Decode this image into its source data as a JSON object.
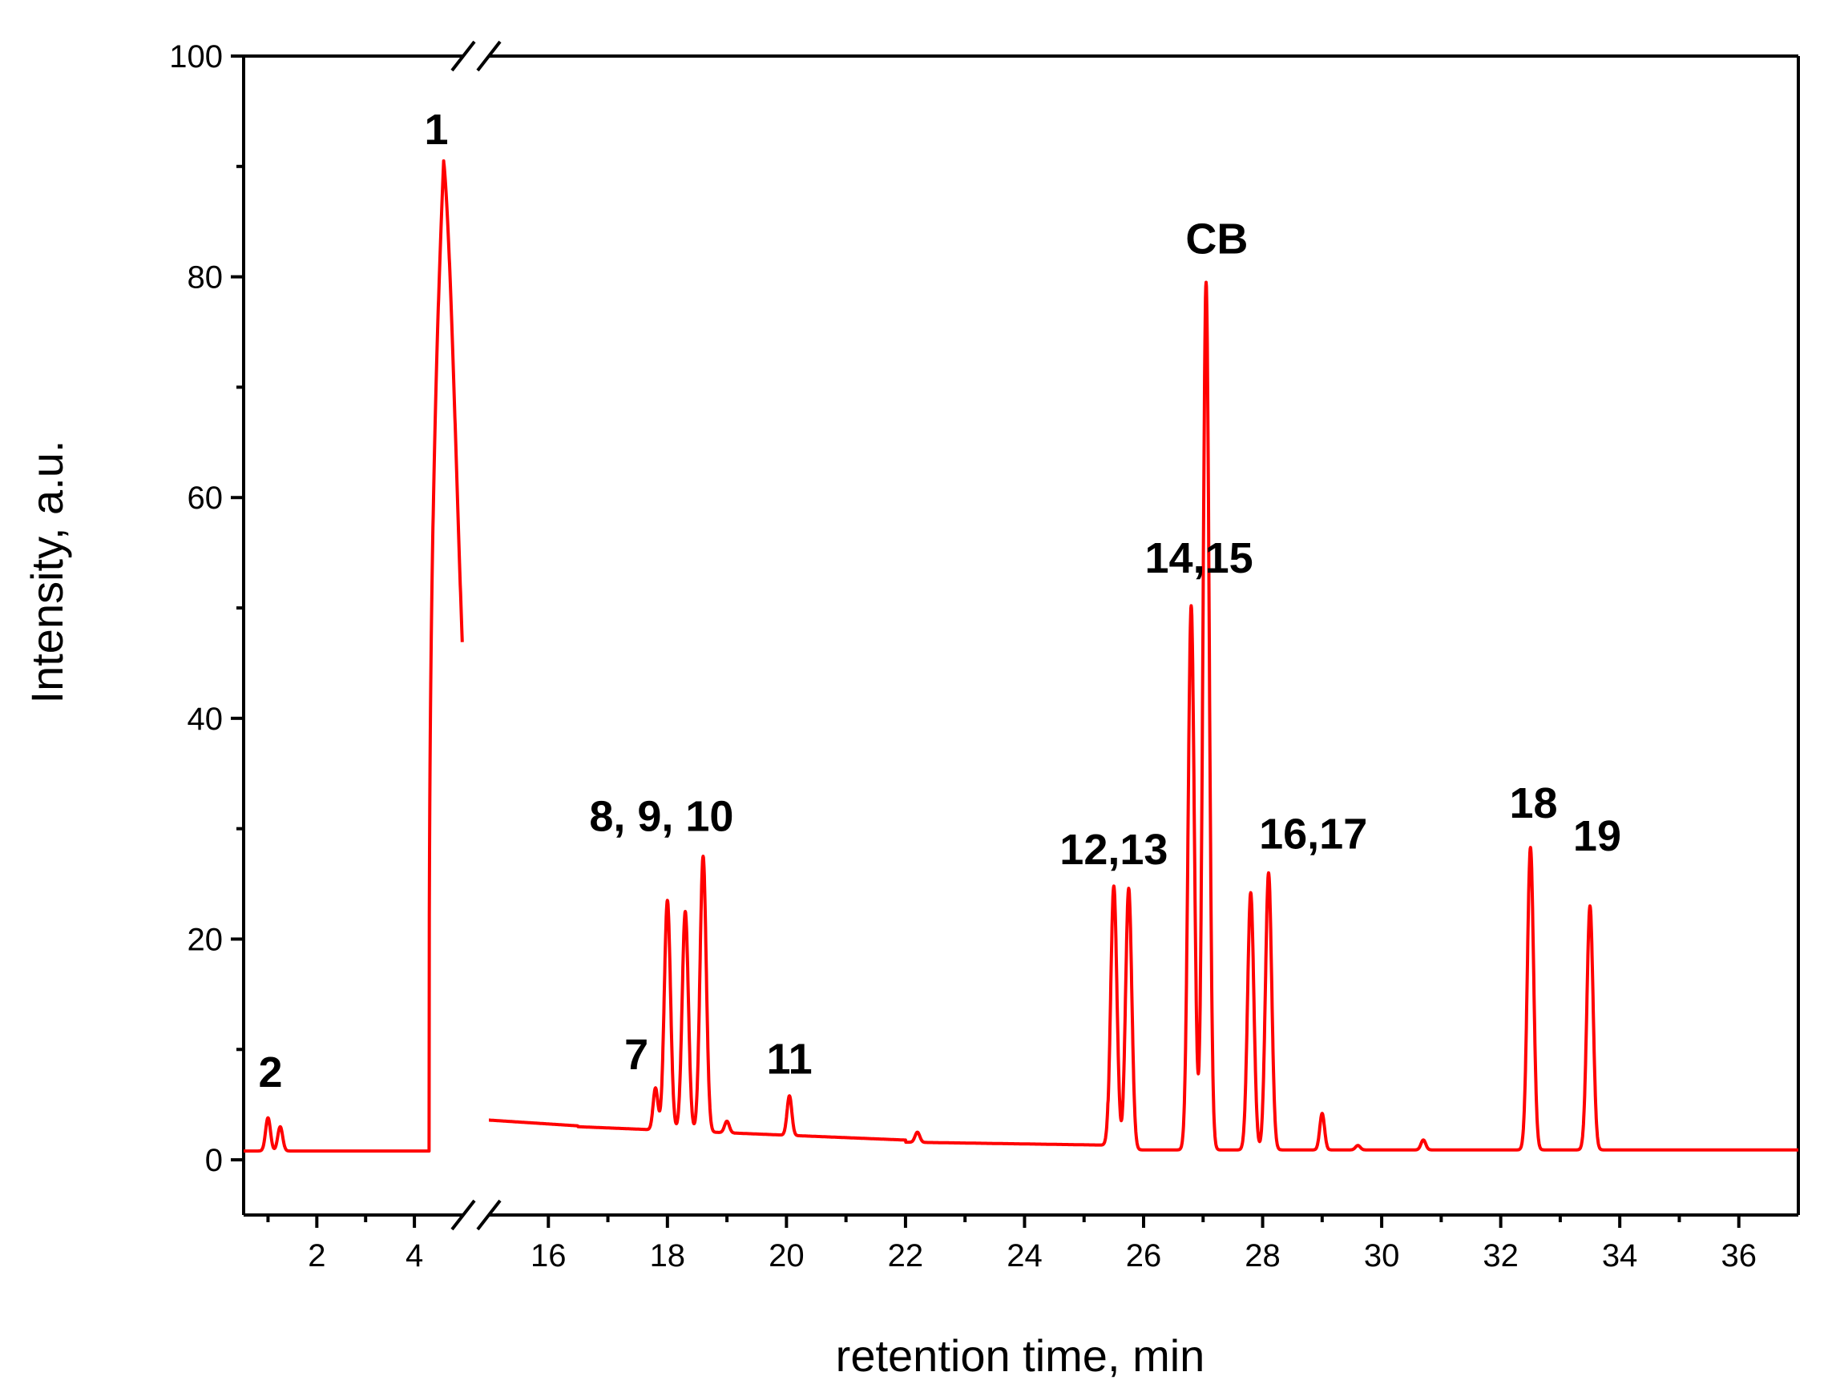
{
  "chart_data": {
    "type": "line",
    "xlabel": "retention time, min",
    "ylabel": "Intensity, a.u.",
    "ylim": [
      -5,
      100
    ],
    "x_axis_break": true,
    "x_segments": [
      {
        "xlim": [
          0.5,
          5.0
        ],
        "major_ticks": [
          2,
          4
        ],
        "minor_ticks": [
          1,
          3
        ]
      },
      {
        "xlim": [
          15.0,
          37.0
        ],
        "major_ticks": [
          16,
          18,
          20,
          22,
          24,
          26,
          28,
          30,
          32,
          34,
          36
        ],
        "minor_ticks": [
          17,
          19,
          21,
          23,
          25,
          27,
          29,
          31,
          33,
          35
        ]
      }
    ],
    "y_major_ticks": [
      0,
      20,
      40,
      60,
      80,
      100
    ],
    "y_minor_ticks": [
      10,
      30,
      50,
      70,
      90
    ],
    "grid": false,
    "line_color": "#ff0000",
    "baseline_segment_1": 0.8,
    "peaks": [
      {
        "label": "2",
        "x": 1.0,
        "y": 3.8
      },
      {
        "label": "",
        "x": 1.25,
        "y": 3.0
      },
      {
        "label": "1",
        "x": 4.6,
        "y": 90.5
      },
      {
        "label": "7",
        "x": 17.8,
        "y": 6.5
      },
      {
        "label": "8, 9, 10",
        "x": 18.0,
        "y": 23.5
      },
      {
        "label": "",
        "x": 18.3,
        "y": 22.5
      },
      {
        "label": "",
        "x": 18.6,
        "y": 27.5
      },
      {
        "label": "",
        "x": 19.0,
        "y": 3.5
      },
      {
        "label": "11",
        "x": 20.05,
        "y": 5.8
      },
      {
        "label": "",
        "x": 22.2,
        "y": 2.5
      },
      {
        "label": "12,13",
        "x": 25.5,
        "y": 24.8
      },
      {
        "label": "",
        "x": 25.75,
        "y": 24.6
      },
      {
        "label": "14,15",
        "x": 26.8,
        "y": 50.2
      },
      {
        "label": "CB",
        "x": 27.05,
        "y": 79.5
      },
      {
        "label": "16,17",
        "x": 27.8,
        "y": 24.2
      },
      {
        "label": "",
        "x": 28.1,
        "y": 26.0
      },
      {
        "label": "",
        "x": 29.0,
        "y": 4.2
      },
      {
        "label": "",
        "x": 29.6,
        "y": 1.3
      },
      {
        "label": "",
        "x": 30.7,
        "y": 1.8
      },
      {
        "label": "18",
        "x": 32.5,
        "y": 28.3
      },
      {
        "label": "19",
        "x": 33.5,
        "y": 23.0
      }
    ],
    "annotations": [
      {
        "text": "2",
        "x": 1.05,
        "y": 6.6
      },
      {
        "text": "1",
        "x": 4.45,
        "y": 92.0
      },
      {
        "text": "7",
        "x": 17.48,
        "y": 8.2
      },
      {
        "text": "8, 9, 10",
        "x": 17.9,
        "y": 29.8
      },
      {
        "text": "11",
        "x": 20.05,
        "y": 7.8
      },
      {
        "text": "12,13",
        "x": 25.5,
        "y": 26.8
      },
      {
        "text": "14,15",
        "x": 26.93,
        "y": 53.2
      },
      {
        "text": "CB",
        "x": 27.23,
        "y": 82.1
      },
      {
        "text": "16,17",
        "x": 28.85,
        "y": 28.2
      },
      {
        "text": "18",
        "x": 32.55,
        "y": 31.0
      },
      {
        "text": "19",
        "x": 33.62,
        "y": 28.0
      }
    ]
  }
}
